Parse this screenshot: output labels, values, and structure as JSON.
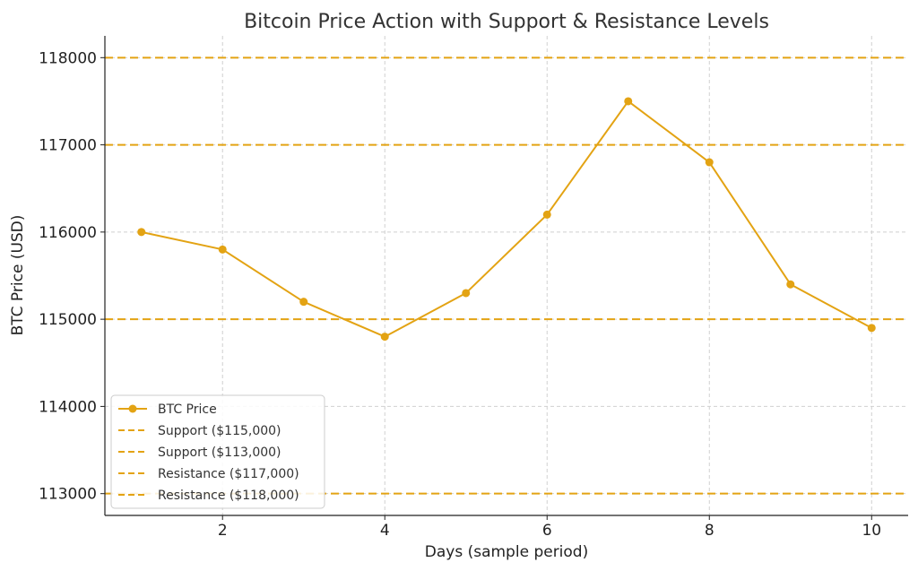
{
  "chart_data": {
    "type": "line",
    "title": "Bitcoin Price Action with Support & Resistance Levels",
    "xlabel": "Days (sample period)",
    "ylabel": "BTC Price (USD)",
    "xlim": [
      0.55,
      10.45
    ],
    "ylim": [
      112750,
      118250
    ],
    "x_ticks": [
      2,
      4,
      6,
      8,
      10
    ],
    "y_ticks": [
      113000,
      114000,
      115000,
      116000,
      117000,
      118000
    ],
    "grid": true,
    "legend_position": "lower-left",
    "series": [
      {
        "name": "BTC Price",
        "color": "#E3A313",
        "x": [
          1,
          2,
          3,
          4,
          5,
          6,
          7,
          8,
          9,
          10
        ],
        "values": [
          116000,
          115800,
          115200,
          114800,
          115300,
          116200,
          117500,
          116800,
          115400,
          114900
        ]
      }
    ],
    "levels": [
      {
        "name": "Support ($115,000)",
        "value": 115000,
        "color": "#E3A313",
        "style": "dashed"
      },
      {
        "name": "Support ($113,000)",
        "value": 113000,
        "color": "#E3A313",
        "style": "dashed"
      },
      {
        "name": "Resistance ($117,000)",
        "value": 117000,
        "color": "#E3A313",
        "style": "dashed"
      },
      {
        "name": "Resistance ($118,000)",
        "value": 118000,
        "color": "#E3A313",
        "style": "dashed"
      }
    ]
  }
}
